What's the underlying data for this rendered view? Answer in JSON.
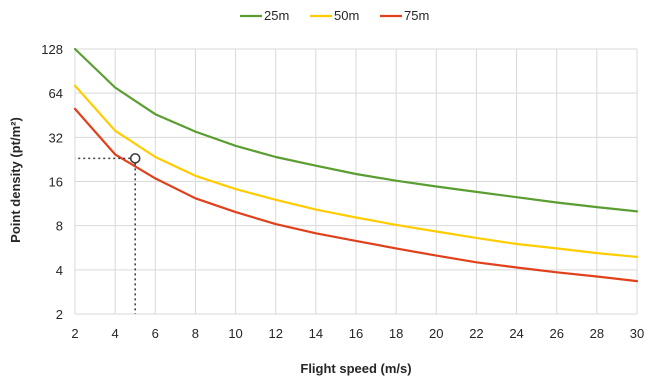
{
  "chart_data": {
    "type": "line",
    "xlabel": "Flight speed (m/s)",
    "ylabel": "Point density (pt/m²)",
    "xlim": [
      2,
      30
    ],
    "ylim": [
      2,
      128
    ],
    "y_scale": "log2",
    "grid": true,
    "legend_position": "top",
    "x_ticks": [
      "2",
      "4",
      "6",
      "8",
      "10",
      "12",
      "14",
      "16",
      "18",
      "20",
      "22",
      "24",
      "26",
      "28",
      "30"
    ],
    "y_ticks": [
      "2",
      "4",
      "8",
      "16",
      "32",
      "64",
      "128"
    ],
    "x": [
      2,
      4,
      6,
      8,
      10,
      12,
      14,
      16,
      18,
      20,
      22,
      24,
      26,
      28,
      30
    ],
    "series": [
      {
        "name": "25m",
        "color": "#5a9e32",
        "values": [
          128,
          70,
          46,
          35,
          28,
          23.5,
          20.5,
          18,
          16.2,
          14.8,
          13.6,
          12.5,
          11.5,
          10.7,
          10
        ]
      },
      {
        "name": "50m",
        "color": "#ffcc00",
        "values": [
          72,
          35.5,
          23.5,
          17.5,
          14.2,
          12,
          10.3,
          9.1,
          8.1,
          7.3,
          6.6,
          6,
          5.6,
          5.2,
          4.9
        ]
      },
      {
        "name": "75m",
        "color": "#e0401a",
        "values": [
          50,
          24.5,
          16.8,
          12.3,
          9.9,
          8.2,
          7.1,
          6.3,
          5.6,
          5.0,
          4.5,
          4.15,
          3.85,
          3.6,
          3.35
        ]
      }
    ],
    "annotation": {
      "type": "marker",
      "x": 5,
      "y": 23,
      "guides": "dotted"
    }
  }
}
